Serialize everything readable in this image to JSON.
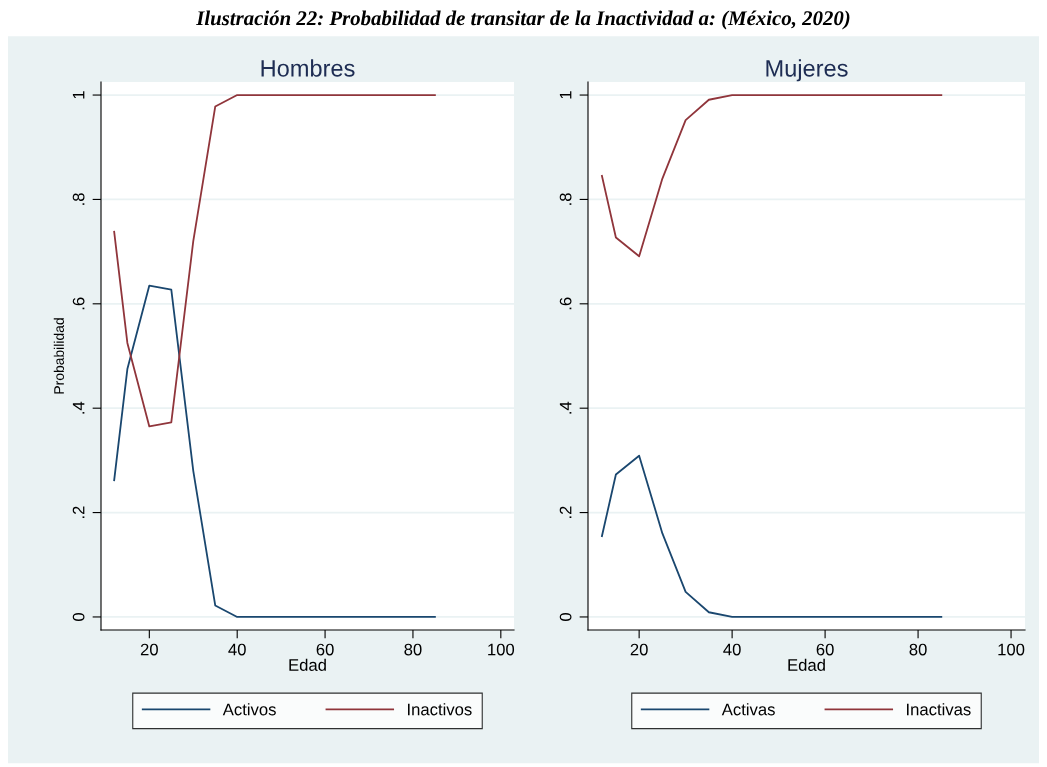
{
  "chart_data": [
    {
      "type": "line",
      "title": "Hombres",
      "xlabel": "Edad",
      "ylabel": "Probabilidad",
      "annotations": [
        "Ilustración 22: Probabilidad de transitar de la Inactividad a: (México, 2020)"
      ],
      "x": [
        12,
        15,
        20,
        25,
        30,
        35,
        40,
        85
      ],
      "series": [
        {
          "name": "Activos",
          "color": "#1a476f",
          "values": [
            0.262,
            0.475,
            0.635,
            0.627,
            0.28,
            0.022,
            0,
            0
          ]
        },
        {
          "name": "Inactivos",
          "color": "#90353b",
          "values": [
            0.738,
            0.525,
            0.365,
            0.373,
            0.72,
            0.978,
            1,
            1
          ]
        }
      ],
      "xlim": [
        9,
        103
      ],
      "ylim": [
        -0.025,
        1.025
      ],
      "xticks": [
        20,
        40,
        60,
        80,
        100
      ],
      "yticks": [
        0,
        {
          "value": 0.2,
          "label": ".2"
        },
        {
          "value": 0.4,
          "label": ".4"
        },
        {
          "value": 0.6,
          "label": ".6"
        },
        {
          "value": 0.8,
          "label": ".8"
        },
        1
      ],
      "grid": "y",
      "legend": "bottom",
      "marker": "none",
      "line_style": "solid"
    },
    {
      "type": "line",
      "title": "Mujeres",
      "xlabel": "Edad",
      "x": [
        12,
        15,
        20,
        25,
        30,
        35,
        40,
        85
      ],
      "series": [
        {
          "name": "Activas",
          "color": "#1a476f",
          "values": [
            0.155,
            0.273,
            0.309,
            0.16,
            0.048,
            0.009,
            0,
            0
          ]
        },
        {
          "name": "Inactivas",
          "color": "#90353b",
          "values": [
            0.845,
            0.727,
            0.691,
            0.84,
            0.952,
            0.991,
            1,
            1
          ]
        }
      ],
      "xlim": [
        9,
        103
      ],
      "ylim": [
        -0.025,
        1.025
      ],
      "xticks": [
        20,
        40,
        60,
        80,
        100
      ],
      "yticks": [
        0,
        {
          "value": 0.2,
          "label": ".2"
        },
        {
          "value": 0.4,
          "label": ".4"
        },
        {
          "value": 0.6,
          "label": ".6"
        },
        {
          "value": 0.8,
          "label": ".8"
        },
        1
      ],
      "grid": "y",
      "legend": "bottom",
      "marker": "none",
      "line_style": "solid"
    }
  ]
}
